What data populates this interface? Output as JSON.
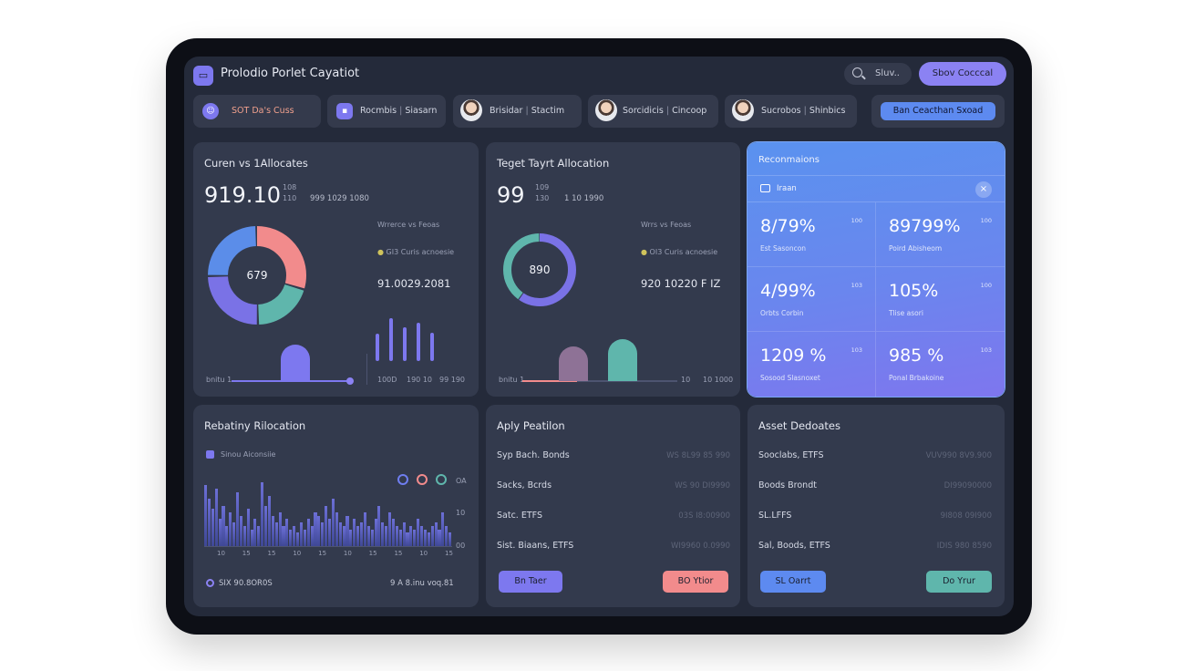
{
  "header": {
    "logo_glyph": "▭",
    "title": "Prolodio Porlet Cayatiot",
    "search_label": "Sluv..",
    "action_button": "Sbov Cocccal"
  },
  "tabs": [
    {
      "label": "SOT Da's Cuss",
      "sep": "",
      "label2": ""
    },
    {
      "label": "Rocmbis",
      "sep": "|",
      "label2": "Siasarn"
    },
    {
      "label": "Brisidar",
      "sep": "|",
      "label2": "Stactim"
    },
    {
      "label": "Sorcidicis",
      "sep": "|",
      "label2": "Cincoop"
    },
    {
      "label": "Sucrobos",
      "sep": "|",
      "label2": "Shinbics"
    }
  ],
  "tab_button": "Ban Ceacthan Sxoad",
  "current": {
    "title": "Curen vs 1Allocates",
    "big_value": "919.10",
    "stat_a": "108",
    "stat_b": "110",
    "stat_c": "999 1029 1080",
    "legend_1": "Wrrerce vs Feoas",
    "legend_2": "GI3 Curis acnoesie",
    "mid_value": "91.0029.2081",
    "donut_center": "679",
    "donut": [
      {
        "value": 30,
        "color": "#f28b8c"
      },
      {
        "value": 20,
        "color": "#5fb6ac"
      },
      {
        "value": 25,
        "color": "#7a72e6"
      },
      {
        "value": 25,
        "color": "#5b8de9"
      }
    ],
    "slider_label": "bnitu 1",
    "slider_value": 0.97,
    "bar_heights": [
      0.6,
      0.95,
      0.75,
      0.85,
      0.62
    ],
    "axis": [
      "100D",
      "190 10",
      "99 190"
    ]
  },
  "target": {
    "title": "Teget Tayrt Allocation",
    "big_value": "99",
    "stat_a": "109",
    "stat_b": "130",
    "stat_c": "1 10 1990",
    "legend_1": "Wrrs vs Feoas",
    "legend_2": "OI3 Curis acnoesie",
    "mid_value": "920 10220 F IZ",
    "donut_center": "890",
    "donut": [
      {
        "value": 60,
        "color": "#7a72e6"
      },
      {
        "value": 40,
        "color": "#5fb6ac"
      }
    ],
    "slider_label": "bnitu 1",
    "slider_value": 0.35,
    "bars": [
      {
        "height": 0.62,
        "color": "#8e7296"
      },
      {
        "height": 0.74,
        "color": "#5fb6ac"
      }
    ],
    "axis": [
      "10",
      "10 1000"
    ]
  },
  "recommendations": {
    "title": "Reconmaions",
    "bar_label": "Iraan",
    "close": "×",
    "cells": [
      {
        "value": "8/79%",
        "sub": "Est Sasoncon",
        "corner": "100"
      },
      {
        "value": "89799%",
        "sub": "Poird Abisheom",
        "corner": "100"
      },
      {
        "value": "4/99%",
        "sub": "Orbts Corbin",
        "corner": "103"
      },
      {
        "value": "105%",
        "sub": "Tlise asori",
        "corner": "100"
      },
      {
        "value": "1209 %",
        "sub": "Sosood Slasnoxet",
        "corner": "103"
      },
      {
        "value": "985 %",
        "sub": "Ponal Brbakoine",
        "corner": "103"
      }
    ]
  },
  "rebalancing": {
    "title": "Rebatiny Rilocation",
    "legend": "Sinou Aiconsiie",
    "y_ticks": [
      "99",
      "10",
      "00"
    ],
    "x_ticks": [
      "10",
      "15",
      "15",
      "10",
      "15",
      "10",
      "15",
      "15",
      "10",
      "15"
    ],
    "footer_left": "SIX 90.8OR0S",
    "footer_right": "9 A 8.inu voq.81",
    "circle_colors": [
      "#6f7ef0",
      "#f28b8c",
      "#5fb6ac"
    ],
    "circle_label": "OA",
    "bars": [
      0.9,
      0.7,
      0.55,
      0.85,
      0.4,
      0.6,
      0.3,
      0.5,
      0.35,
      0.8,
      0.45,
      0.3,
      0.55,
      0.25,
      0.4,
      0.3,
      0.95,
      0.6,
      0.75,
      0.45,
      0.35,
      0.5,
      0.3,
      0.4,
      0.25,
      0.3,
      0.2,
      0.35,
      0.25,
      0.4,
      0.3,
      0.5,
      0.45,
      0.35,
      0.6,
      0.4,
      0.7,
      0.5,
      0.35,
      0.3,
      0.45,
      0.25,
      0.4,
      0.3,
      0.35,
      0.5,
      0.3,
      0.25,
      0.4,
      0.6,
      0.35,
      0.3,
      0.5,
      0.4,
      0.3,
      0.25,
      0.35,
      0.2,
      0.3,
      0.25,
      0.4,
      0.3,
      0.25,
      0.2,
      0.3,
      0.35,
      0.25,
      0.5,
      0.3,
      0.2
    ]
  },
  "apply": {
    "title": "Aply Peatilon",
    "rows": [
      {
        "k": "Syp Bach. Bonds",
        "v": "WS 8L99 85 990"
      },
      {
        "k": "Sacks, Bcrds",
        "v": "WS 90 DI9990"
      },
      {
        "k": "Satc. ETFS",
        "v": "03S I8:00900"
      },
      {
        "k": "Sist. Biaans, ETFS",
        "v": "WI9960 0.0990"
      }
    ],
    "btn_left": "Bn Taer",
    "btn_right": "BO Ytior"
  },
  "asset": {
    "title": "Asset Dedoates",
    "rows": [
      {
        "k": "Sooclabs, ETFS",
        "v": "VUV990 8V9.900"
      },
      {
        "k": "Boods Brondt",
        "v": "DI99090000"
      },
      {
        "k": "SL.LFFS",
        "v": "9I808 09I900"
      },
      {
        "k": "Sal, Boods, ETFS",
        "v": "IDIS 980 8590"
      }
    ],
    "btn_left": "SL Oarrt",
    "btn_right": "Do Yrur"
  },
  "colors": {
    "accent": "#7d78ef",
    "blue": "#5d8af0",
    "teal": "#5fb6ac",
    "coral": "#f28b8c",
    "card": "#333a4d",
    "screen": "#242a3a"
  }
}
